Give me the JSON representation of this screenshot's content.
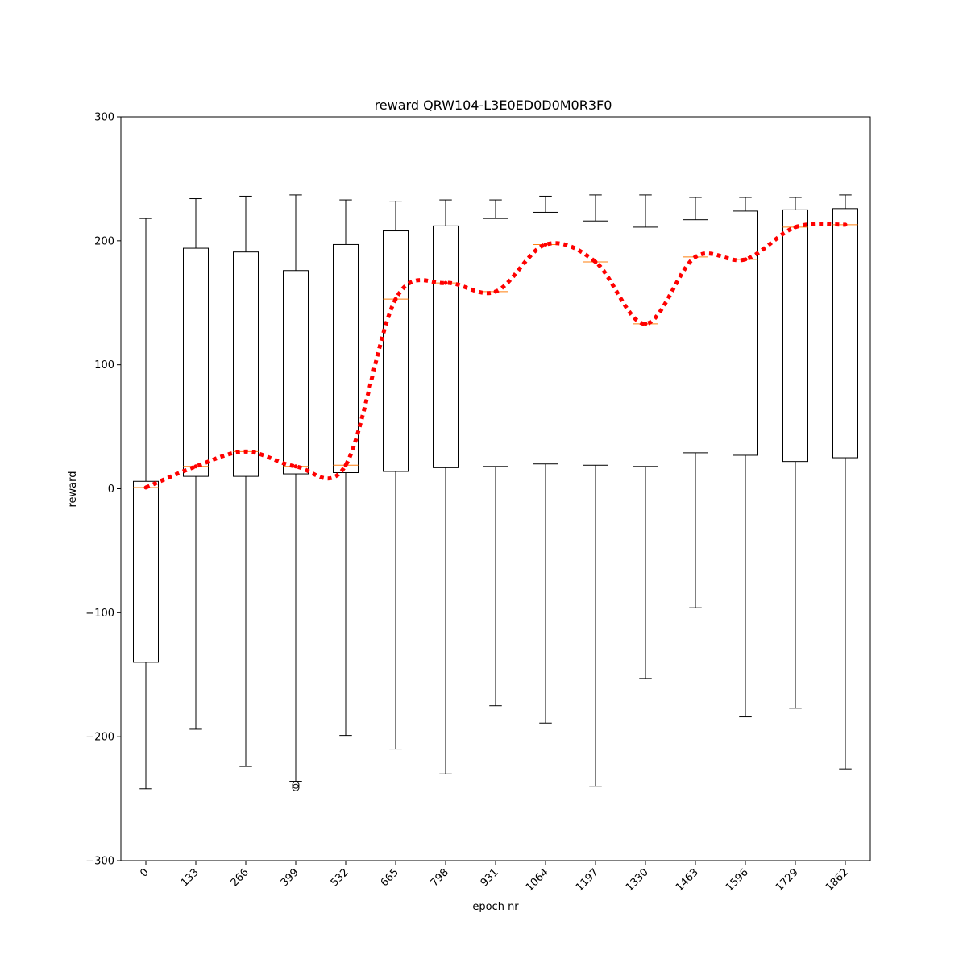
{
  "chart_data": {
    "type": "box",
    "title": "reward QRW104-L3E0ED0D0M0R3F0",
    "xlabel": "epoch nr",
    "ylabel": "reward",
    "ylim": [
      -300,
      300
    ],
    "yticks": [
      -300,
      -200,
      -100,
      0,
      100,
      200,
      300
    ],
    "ytick_labels": [
      "−300",
      "−200",
      "−100",
      "0",
      "100",
      "200",
      "300"
    ],
    "categories": [
      "0",
      "133",
      "266",
      "399",
      "532",
      "665",
      "798",
      "931",
      "1064",
      "1197",
      "1330",
      "1463",
      "1596",
      "1729",
      "1862"
    ],
    "boxes": [
      {
        "whislo": -242,
        "q1": -140,
        "median": 1,
        "q3": 6,
        "whishi": 218,
        "fliers": []
      },
      {
        "whislo": -194,
        "q1": 10,
        "median": 18,
        "q3": 194,
        "whishi": 234,
        "fliers": []
      },
      {
        "whislo": -224,
        "q1": 10,
        "median": 30,
        "q3": 191,
        "whishi": 236,
        "fliers": []
      },
      {
        "whislo": -236,
        "q1": 12,
        "median": 18,
        "q3": 176,
        "whishi": 237,
        "fliers": [
          -239,
          -241
        ]
      },
      {
        "whislo": -199,
        "q1": 13,
        "median": 19,
        "q3": 197,
        "whishi": 233,
        "fliers": []
      },
      {
        "whislo": -210,
        "q1": 14,
        "median": 153,
        "q3": 208,
        "whishi": 232,
        "fliers": []
      },
      {
        "whislo": -230,
        "q1": 17,
        "median": 166,
        "q3": 212,
        "whishi": 233,
        "fliers": []
      },
      {
        "whislo": -175,
        "q1": 18,
        "median": 159,
        "q3": 218,
        "whishi": 233,
        "fliers": []
      },
      {
        "whislo": -189,
        "q1": 20,
        "median": 197,
        "q3": 223,
        "whishi": 236,
        "fliers": []
      },
      {
        "whislo": -240,
        "q1": 19,
        "median": 183,
        "q3": 216,
        "whishi": 237,
        "fliers": []
      },
      {
        "whislo": -153,
        "q1": 18,
        "median": 133,
        "q3": 211,
        "whishi": 237,
        "fliers": []
      },
      {
        "whislo": -96,
        "q1": 29,
        "median": 187,
        "q3": 217,
        "whishi": 235,
        "fliers": []
      },
      {
        "whislo": -184,
        "q1": 27,
        "median": 185,
        "q3": 224,
        "whishi": 235,
        "fliers": []
      },
      {
        "whislo": -177,
        "q1": 22,
        "median": 211,
        "q3": 225,
        "whishi": 235,
        "fliers": []
      },
      {
        "whislo": -226,
        "q1": 25,
        "median": 213,
        "q3": 226,
        "whishi": 237,
        "fliers": []
      }
    ],
    "trend_line": {
      "values": [
        1,
        18,
        30,
        18,
        19,
        153,
        166,
        159,
        197,
        183,
        133,
        187,
        185,
        211,
        213
      ],
      "color": "#ff0000",
      "style": "dotted"
    },
    "box_color": "#000000",
    "median_color": "#ff7f0e",
    "grid": false,
    "legend": "none"
  }
}
